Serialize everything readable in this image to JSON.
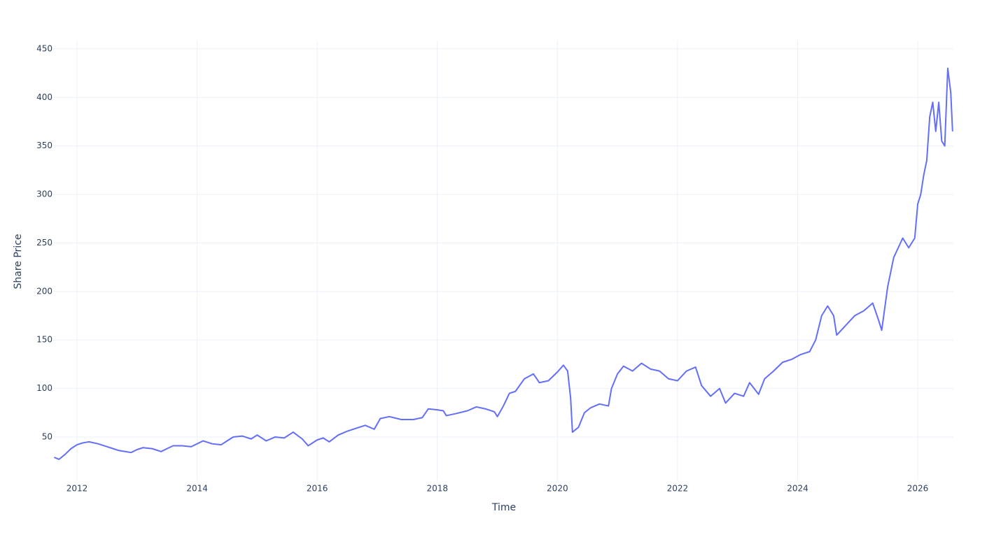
{
  "chart_data": {
    "type": "line",
    "x_label": "Time",
    "y_label": "Share Price",
    "xlim": [
      2011.615,
      2026.594
    ],
    "xticks": [
      2012,
      2014,
      2016,
      2018,
      2020,
      2022,
      2024,
      2026
    ],
    "ylim": [
      5.3,
      458.6
    ],
    "yticks": [
      50,
      100,
      150,
      200,
      250,
      300,
      350,
      400,
      450
    ],
    "grid": true,
    "x": [
      2011.62,
      2011.7,
      2011.8,
      2011.9,
      2012.0,
      2012.1,
      2012.2,
      2012.35,
      2012.5,
      2012.6,
      2012.7,
      2012.8,
      2012.9,
      2013.0,
      2013.1,
      2013.25,
      2013.4,
      2013.5,
      2013.6,
      2013.75,
      2013.9,
      2014.0,
      2014.1,
      2014.25,
      2014.4,
      2014.5,
      2014.6,
      2014.75,
      2014.9,
      2015.0,
      2015.15,
      2015.3,
      2015.45,
      2015.6,
      2015.75,
      2015.85,
      2016.0,
      2016.1,
      2016.2,
      2016.35,
      2016.5,
      2016.65,
      2016.8,
      2016.95,
      2017.05,
      2017.2,
      2017.4,
      2017.6,
      2017.75,
      2017.85,
      2018.0,
      2018.1,
      2018.15,
      2018.3,
      2018.5,
      2018.65,
      2018.8,
      2018.95,
      2019.0,
      2019.1,
      2019.2,
      2019.3,
      2019.45,
      2019.6,
      2019.7,
      2019.85,
      2020.0,
      2020.1,
      2020.17,
      2020.22,
      2020.25,
      2020.35,
      2020.45,
      2020.55,
      2020.7,
      2020.85,
      2020.9,
      2021.0,
      2021.1,
      2021.25,
      2021.4,
      2021.55,
      2021.7,
      2021.85,
      2022.0,
      2022.15,
      2022.3,
      2022.4,
      2022.55,
      2022.7,
      2022.8,
      2022.95,
      2023.1,
      2023.2,
      2023.35,
      2023.45,
      2023.6,
      2023.75,
      2023.9,
      2024.05,
      2024.2,
      2024.3,
      2024.4,
      2024.5,
      2024.6,
      2024.65,
      2024.8,
      2024.95,
      2025.1,
      2025.25,
      2025.35,
      2025.4,
      2025.5,
      2025.6,
      2025.75,
      2025.85,
      2025.95,
      2026.0,
      2026.05,
      2026.1,
      2026.15,
      2026.2,
      2026.25,
      2026.3,
      2026.35,
      2026.4,
      2026.45,
      2026.5,
      2026.55,
      2026.58
    ],
    "series": [
      {
        "color": "#636efa",
        "values": [
          29,
          27,
          32,
          38,
          42,
          44,
          45,
          43,
          40,
          38,
          36,
          35,
          34,
          37,
          39,
          38,
          35,
          38,
          41,
          41,
          40,
          43,
          46,
          43,
          42,
          46,
          50,
          51,
          48,
          52,
          46,
          50,
          49,
          55,
          48,
          41,
          47,
          49,
          45,
          52,
          56,
          59,
          62,
          58,
          69,
          71,
          68,
          68,
          70,
          79,
          78,
          77,
          72,
          74,
          77,
          81,
          79,
          76,
          71,
          82,
          95,
          97,
          110,
          115,
          106,
          108,
          117,
          124,
          118,
          90,
          55,
          60,
          75,
          80,
          84,
          82,
          100,
          115,
          123,
          118,
          126,
          120,
          118,
          110,
          108,
          118,
          122,
          103,
          92,
          100,
          85,
          95,
          92,
          106,
          94,
          110,
          118,
          127,
          130,
          135,
          138,
          150,
          175,
          185,
          175,
          155,
          165,
          175,
          180,
          188,
          170,
          160,
          205,
          235,
          255,
          245,
          255,
          290,
          300,
          320,
          335,
          380,
          395,
          365,
          395,
          355,
          350,
          430,
          405,
          365
        ]
      }
    ]
  }
}
